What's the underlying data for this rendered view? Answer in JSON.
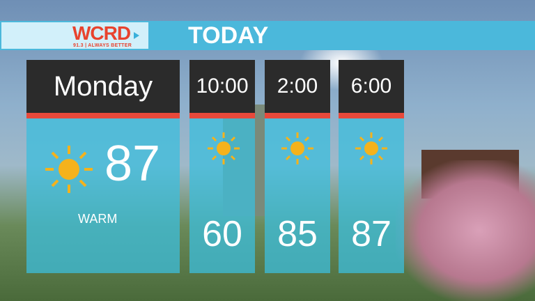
{
  "header": {
    "logo_name": "WCRD",
    "logo_tagline": "91.3 | ALWAYS BETTER",
    "title": "TODAY"
  },
  "colors": {
    "accent_blue": "#4bb8db",
    "stripe_red": "#e8493b",
    "header_dark": "#2b2b2b",
    "sun": "#f5b21c"
  },
  "day": {
    "label": "Monday",
    "temp": "87",
    "condition": "WARM",
    "icon": "sun-icon"
  },
  "hours": [
    {
      "time": "10:00",
      "temp": "60",
      "icon": "sun-icon"
    },
    {
      "time": "2:00",
      "temp": "85",
      "icon": "sun-icon"
    },
    {
      "time": "6:00",
      "temp": "87",
      "icon": "sun-icon"
    }
  ]
}
